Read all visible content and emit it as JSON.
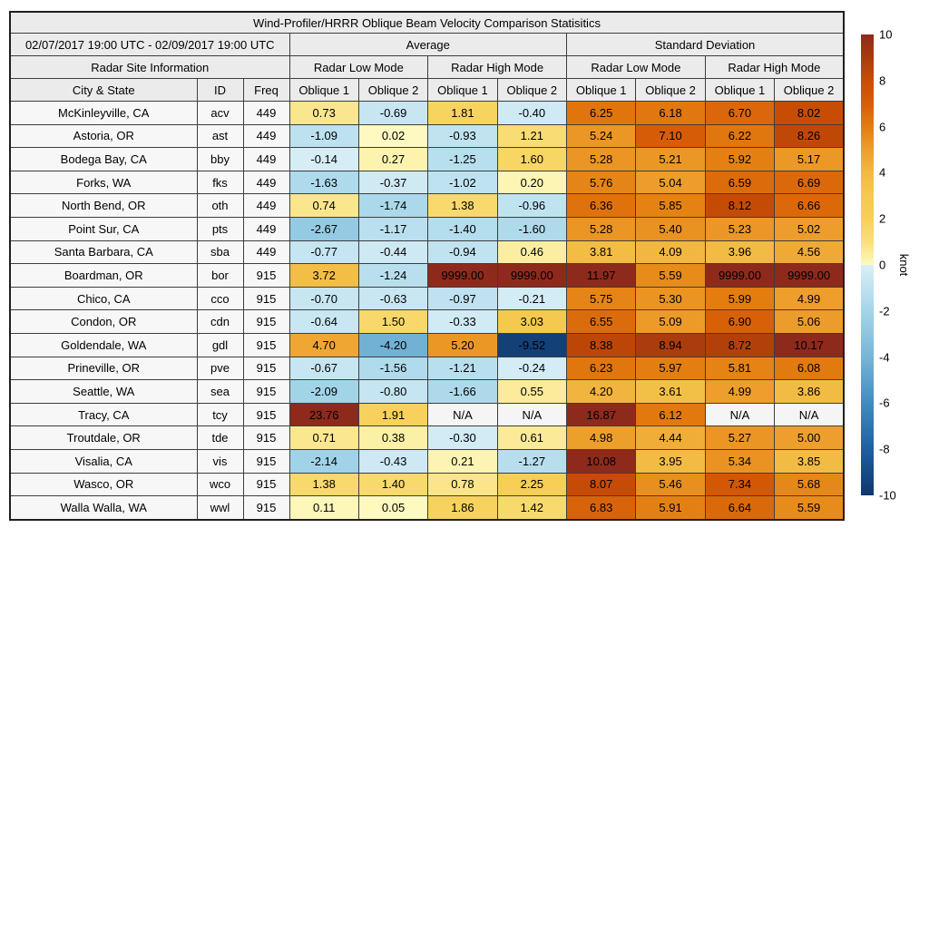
{
  "chart_data": {
    "type": "table",
    "subtype": "heatmap-table",
    "title": "Wind-Profiler/HRRR Oblique Beam Velocity Comparison Statisitics",
    "date_range": "02/07/2017 19:00 UTC - 02/09/2017 19:00 UTC",
    "site_info_header": "Radar Site Information",
    "group_headers": [
      "Average",
      "Standard Deviation"
    ],
    "mode_headers": [
      "Radar Low Mode",
      "Radar High Mode",
      "Radar Low Mode",
      "Radar High Mode"
    ],
    "columns": [
      "City & State",
      "ID",
      "Freq",
      "Oblique 1",
      "Oblique 2",
      "Oblique 1",
      "Oblique 2",
      "Oblique 1",
      "Oblique 2",
      "Oblique 1",
      "Oblique 2"
    ],
    "na_text": "N/A",
    "rows": [
      {
        "city": "McKinleyville, CA",
        "id": "acv",
        "freq": "449",
        "values": [
          "0.73",
          "-0.69",
          "1.81",
          "-0.40",
          "6.25",
          "6.18",
          "6.70",
          "8.02"
        ]
      },
      {
        "city": "Astoria, OR",
        "id": "ast",
        "freq": "449",
        "values": [
          "-1.09",
          "0.02",
          "-0.93",
          "1.21",
          "5.24",
          "7.10",
          "6.22",
          "8.26"
        ]
      },
      {
        "city": "Bodega Bay, CA",
        "id": "bby",
        "freq": "449",
        "values": [
          "-0.14",
          "0.27",
          "-1.25",
          "1.60",
          "5.28",
          "5.21",
          "5.92",
          "5.17"
        ]
      },
      {
        "city": "Forks, WA",
        "id": "fks",
        "freq": "449",
        "values": [
          "-1.63",
          "-0.37",
          "-1.02",
          "0.20",
          "5.76",
          "5.04",
          "6.59",
          "6.69"
        ]
      },
      {
        "city": "North Bend, OR",
        "id": "oth",
        "freq": "449",
        "values": [
          "0.74",
          "-1.74",
          "1.38",
          "-0.96",
          "6.36",
          "5.85",
          "8.12",
          "6.66"
        ]
      },
      {
        "city": "Point Sur, CA",
        "id": "pts",
        "freq": "449",
        "values": [
          "-2.67",
          "-1.17",
          "-1.40",
          "-1.60",
          "5.28",
          "5.40",
          "5.23",
          "5.02"
        ]
      },
      {
        "city": "Santa Barbara, CA",
        "id": "sba",
        "freq": "449",
        "values": [
          "-0.77",
          "-0.44",
          "-0.94",
          "0.46",
          "3.81",
          "4.09",
          "3.96",
          "4.56"
        ]
      },
      {
        "city": "Boardman, OR",
        "id": "bor",
        "freq": "915",
        "values": [
          "3.72",
          "-1.24",
          "9999.00",
          "9999.00",
          "11.97",
          "5.59",
          "9999.00",
          "9999.00"
        ]
      },
      {
        "city": "Chico, CA",
        "id": "cco",
        "freq": "915",
        "values": [
          "-0.70",
          "-0.63",
          "-0.97",
          "-0.21",
          "5.75",
          "5.30",
          "5.99",
          "4.99"
        ]
      },
      {
        "city": "Condon, OR",
        "id": "cdn",
        "freq": "915",
        "values": [
          "-0.64",
          "1.50",
          "-0.33",
          "3.03",
          "6.55",
          "5.09",
          "6.90",
          "5.06"
        ]
      },
      {
        "city": "Goldendale, WA",
        "id": "gdl",
        "freq": "915",
        "values": [
          "4.70",
          "-4.20",
          "5.20",
          "-9.52",
          "8.38",
          "8.94",
          "8.72",
          "10.17"
        ]
      },
      {
        "city": "Prineville, OR",
        "id": "pve",
        "freq": "915",
        "values": [
          "-0.67",
          "-1.56",
          "-1.21",
          "-0.24",
          "6.23",
          "5.97",
          "5.81",
          "6.08"
        ]
      },
      {
        "city": "Seattle, WA",
        "id": "sea",
        "freq": "915",
        "values": [
          "-2.09",
          "-0.80",
          "-1.66",
          "0.55",
          "4.20",
          "3.61",
          "4.99",
          "3.86"
        ]
      },
      {
        "city": "Tracy, CA",
        "id": "tcy",
        "freq": "915",
        "values": [
          "23.76",
          "1.91",
          "N/A",
          "N/A",
          "16.87",
          "6.12",
          "N/A",
          "N/A"
        ]
      },
      {
        "city": "Troutdale, OR",
        "id": "tde",
        "freq": "915",
        "values": [
          "0.71",
          "0.38",
          "-0.30",
          "0.61",
          "4.98",
          "4.44",
          "5.27",
          "5.00"
        ]
      },
      {
        "city": "Visalia, CA",
        "id": "vis",
        "freq": "915",
        "values": [
          "-2.14",
          "-0.43",
          "0.21",
          "-1.27",
          "10.08",
          "3.95",
          "5.34",
          "3.85"
        ]
      },
      {
        "city": "Wasco, OR",
        "id": "wco",
        "freq": "915",
        "values": [
          "1.38",
          "1.40",
          "0.78",
          "2.25",
          "8.07",
          "5.46",
          "7.34",
          "5.68"
        ]
      },
      {
        "city": "Walla Walla, WA",
        "id": "wwl",
        "freq": "915",
        "values": [
          "0.11",
          "0.05",
          "1.86",
          "1.42",
          "6.83",
          "5.91",
          "6.64",
          "5.59"
        ]
      }
    ],
    "colorbar": {
      "label": "knot",
      "min": -10,
      "max": 10,
      "ticks": [
        "10",
        "8",
        "6",
        "4",
        "2",
        "0",
        "-2",
        "-4",
        "-6",
        "-8",
        "-10"
      ]
    },
    "colormap": {
      "negative_stops": [
        [
          -10,
          "#10366b"
        ],
        [
          -8,
          "#1f5fa2"
        ],
        [
          -6,
          "#3f8cc0"
        ],
        [
          -4,
          "#78b4d6"
        ],
        [
          -2,
          "#a4d5e9"
        ],
        [
          0,
          "#daeff7"
        ]
      ],
      "positive_stops": [
        [
          0,
          "#fefac2"
        ],
        [
          1,
          "#f9df7b"
        ],
        [
          2,
          "#f7d058"
        ],
        [
          3,
          "#f5c94f"
        ],
        [
          4,
          "#f2ba42"
        ],
        [
          5,
          "#ed9e2c"
        ],
        [
          6,
          "#e37d10"
        ],
        [
          7,
          "#d75e07"
        ],
        [
          8,
          "#c84d04"
        ],
        [
          9,
          "#a83b0e"
        ],
        [
          10,
          "#8d2a1c"
        ]
      ]
    }
  },
  "colors": {
    "header_bg": "#ebebeb",
    "row_label_bg": "#f7f7f7",
    "na_bg": "#f5f5f5",
    "border": "#3d3d3d",
    "text": "#000000",
    "page_bg": "#ffffff"
  }
}
